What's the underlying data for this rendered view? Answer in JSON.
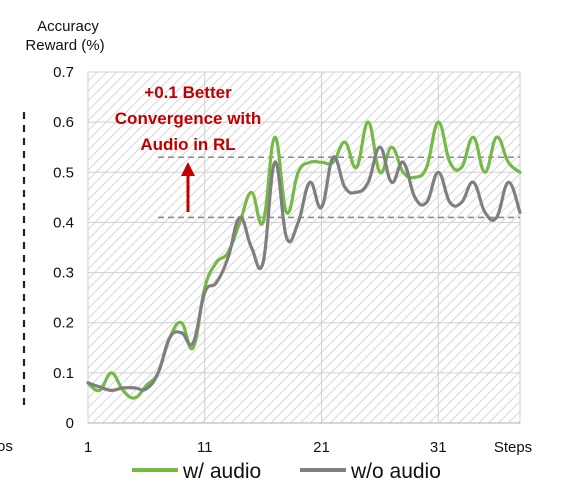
{
  "chart_data": {
    "type": "line",
    "ylabel": [
      "Accuracy",
      "Reward (%)"
    ],
    "xlabel": "Steps",
    "left_fragment": "os",
    "ylim": [
      0,
      0.7
    ],
    "yticks": [
      "0",
      "0.1",
      "0.2",
      "0.3",
      "0.4",
      "0.5",
      "0.6",
      "0.7"
    ],
    "xlim": [
      1,
      38
    ],
    "xticks": [
      {
        "value": 1,
        "label": "1"
      },
      {
        "value": 11,
        "label": "11"
      },
      {
        "value": 21,
        "label": "21"
      },
      {
        "value": 31,
        "label": "31"
      }
    ],
    "grid": true,
    "background": "diagonal-hatch",
    "series": [
      {
        "name": "w/ audio",
        "color": "#76b947",
        "x": [
          1,
          2,
          3,
          4,
          5,
          6,
          7,
          8,
          9,
          10,
          11,
          12,
          13,
          14,
          15,
          16,
          17,
          18,
          19,
          20,
          21,
          22,
          23,
          24,
          25,
          26,
          27,
          28,
          29,
          30,
          31,
          32,
          33,
          34,
          35,
          36,
          37,
          38
        ],
        "values": [
          0.08,
          0.065,
          0.1,
          0.065,
          0.05,
          0.075,
          0.1,
          0.17,
          0.2,
          0.15,
          0.27,
          0.32,
          0.34,
          0.4,
          0.46,
          0.4,
          0.57,
          0.42,
          0.5,
          0.52,
          0.52,
          0.52,
          0.56,
          0.51,
          0.6,
          0.5,
          0.55,
          0.5,
          0.49,
          0.51,
          0.6,
          0.52,
          0.51,
          0.57,
          0.5,
          0.57,
          0.52,
          0.5
        ]
      },
      {
        "name": "w/o audio",
        "color": "#7f7f7f",
        "x": [
          1,
          2,
          3,
          4,
          5,
          6,
          7,
          8,
          9,
          10,
          11,
          12,
          13,
          14,
          15,
          16,
          17,
          18,
          19,
          20,
          21,
          22,
          23,
          24,
          25,
          26,
          27,
          28,
          29,
          30,
          31,
          32,
          33,
          34,
          35,
          36,
          37,
          38
        ],
        "values": [
          0.08,
          0.072,
          0.065,
          0.07,
          0.07,
          0.068,
          0.1,
          0.17,
          0.18,
          0.16,
          0.26,
          0.28,
          0.33,
          0.41,
          0.35,
          0.32,
          0.52,
          0.37,
          0.4,
          0.48,
          0.43,
          0.53,
          0.47,
          0.46,
          0.48,
          0.55,
          0.48,
          0.52,
          0.45,
          0.44,
          0.5,
          0.44,
          0.44,
          0.48,
          0.42,
          0.41,
          0.48,
          0.42
        ]
      }
    ],
    "reference_lines": [
      {
        "y": 0.53,
        "x_start": 7.0,
        "x_end": 38
      },
      {
        "y": 0.41,
        "x_start": 7.0,
        "x_end": 38
      }
    ],
    "annotation": {
      "lines": [
        "+0.1 Better",
        "Convergence with",
        "Audio in RL"
      ],
      "color": "#c00000"
    }
  }
}
